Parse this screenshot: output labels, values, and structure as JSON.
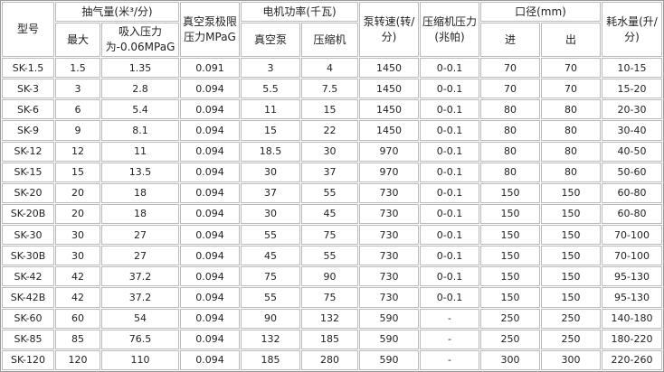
{
  "headers": {
    "model": "型号",
    "suction": "抽气量(米³/分)",
    "suction_max": "最大",
    "suction_at": "吸入压力为-0.06MPaG",
    "limit": "真空泵极限压力MPaG",
    "power": "电机功率(千瓦)",
    "power_pump": "真空泵",
    "power_comp": "压缩机",
    "speed": "泵转速(转/分)",
    "comp_pressure": "压缩机压力(兆帕)",
    "diameter": "口径(mm)",
    "dia_in": "进",
    "dia_out": "出",
    "water": "耗水量(升/分)"
  },
  "rows": [
    [
      "SK-1.5",
      "1.5",
      "1.35",
      "0.091",
      "3",
      "4",
      "1450",
      "0-0.1",
      "70",
      "70",
      "10-15"
    ],
    [
      "SK-3",
      "3",
      "2.8",
      "0.094",
      "5.5",
      "7.5",
      "1450",
      "0-0.1",
      "70",
      "70",
      "15-20"
    ],
    [
      "SK-6",
      "6",
      "5.4",
      "0.094",
      "11",
      "15",
      "1450",
      "0-0.1",
      "80",
      "80",
      "20-30"
    ],
    [
      "SK-9",
      "9",
      "8.1",
      "0.094",
      "15",
      "22",
      "1450",
      "0-0.1",
      "80",
      "80",
      "30-40"
    ],
    [
      "SK-12",
      "12",
      "11",
      "0.094",
      "18.5",
      "30",
      "970",
      "0-0.1",
      "80",
      "80",
      "40-50"
    ],
    [
      "SK-15",
      "15",
      "13.5",
      "0.094",
      "30",
      "37",
      "970",
      "0-0.1",
      "80",
      "80",
      "50-60"
    ],
    [
      "SK-20",
      "20",
      "18",
      "0.094",
      "37",
      "55",
      "730",
      "0-0.1",
      "150",
      "150",
      "60-80"
    ],
    [
      "SK-20B",
      "20",
      "18",
      "0.094",
      "30",
      "45",
      "730",
      "0-0.1",
      "150",
      "150",
      "60-80"
    ],
    [
      "SK-30",
      "30",
      "27",
      "0.094",
      "55",
      "75",
      "730",
      "0-0.1",
      "150",
      "150",
      "70-100"
    ],
    [
      "SK-30B",
      "30",
      "27",
      "0.094",
      "45",
      "55",
      "730",
      "0-0.1",
      "150",
      "150",
      "70-100"
    ],
    [
      "SK-42",
      "42",
      "37.2",
      "0.094",
      "75",
      "90",
      "730",
      "0-0.1",
      "150",
      "150",
      "95-130"
    ],
    [
      "SK-42B",
      "42",
      "37.2",
      "0.094",
      "55",
      "75",
      "730",
      "0-0.1",
      "150",
      "150",
      "95-130"
    ],
    [
      "SK-60",
      "60",
      "54",
      "0.094",
      "90",
      "132",
      "590",
      "-",
      "250",
      "250",
      "140-180"
    ],
    [
      "SK-85",
      "85",
      "76.5",
      "0.094",
      "132",
      "185",
      "590",
      "-",
      "250",
      "250",
      "180-220"
    ],
    [
      "SK-120",
      "120",
      "110",
      "0.094",
      "185",
      "280",
      "590",
      "-",
      "300",
      "300",
      "220-260"
    ]
  ]
}
